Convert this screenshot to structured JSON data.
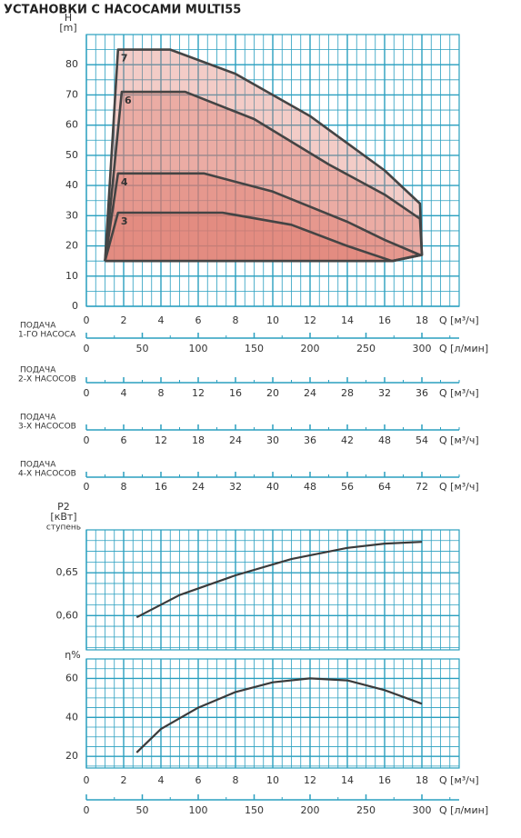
{
  "title": "УСТАНОВКИ С НАСОСАМИ MULTI55",
  "chart_data": [
    {
      "type": "line",
      "y_label": "H",
      "y_unit": "[m]",
      "x_label": "Q [м³/ч]",
      "xlim": [
        0,
        20
      ],
      "ylim": [
        0,
        90
      ],
      "xticks": [
        0,
        2,
        4,
        6,
        8,
        10,
        12,
        14,
        16,
        18
      ],
      "yticks": [
        0,
        10,
        20,
        30,
        40,
        50,
        60,
        70,
        80
      ],
      "grid": true,
      "xtick_labels": true,
      "series": [
        {
          "name": "7",
          "color": "#e07a6c",
          "x": [
            1.0,
            1.7,
            4.5,
            8,
            12,
            16,
            17.9,
            18.0,
            16.4,
            1.0
          ],
          "values": [
            15,
            85,
            85,
            77,
            63,
            45,
            34,
            17,
            15,
            15
          ]
        },
        {
          "name": "6",
          "color": "#e07a6c",
          "x": [
            1.0,
            1.9,
            5.3,
            9,
            13,
            16,
            17.9,
            18.0,
            16.4,
            1.0
          ],
          "values": [
            15,
            71,
            71,
            62,
            47,
            37,
            29,
            17,
            15,
            15
          ]
        },
        {
          "name": "4",
          "color": "#e07a6c",
          "x": [
            1.0,
            1.7,
            6.3,
            10,
            14,
            16,
            17.9,
            16.4,
            1.0
          ],
          "values": [
            15,
            44,
            44,
            38,
            28,
            22,
            17,
            15,
            15
          ]
        },
        {
          "name": "3",
          "color": "#e07a6c",
          "x": [
            1.0,
            1.7,
            7.3,
            11,
            14,
            16.4,
            1.0
          ],
          "values": [
            15,
            31,
            31,
            27,
            20,
            15,
            15
          ]
        }
      ]
    },
    {
      "type": "axis",
      "label": [
        "ПОДАЧА",
        "1-ГО НАСОСА"
      ],
      "x_label": "Q [л/мин]",
      "xlim": [
        0,
        333.33
      ],
      "xticks": [
        0,
        50,
        100,
        150,
        200,
        250,
        300
      ]
    },
    {
      "type": "axis",
      "label": [
        "ПОДАЧА",
        "2-Х НАСОСОВ"
      ],
      "x_label": "Q [м³/ч]",
      "xlim": [
        0,
        40
      ],
      "xticks": [
        0,
        4,
        8,
        12,
        16,
        20,
        24,
        28,
        32,
        36
      ]
    },
    {
      "type": "axis",
      "label": [
        "ПОДАЧА",
        "3-Х НАСОСОВ"
      ],
      "x_label": "Q [м³/ч]",
      "xlim": [
        0,
        60
      ],
      "xticks": [
        0,
        6,
        12,
        18,
        24,
        30,
        36,
        42,
        48,
        54
      ]
    },
    {
      "type": "axis",
      "label": [
        "ПОДАЧА",
        "4-Х НАСОСОВ"
      ],
      "x_label": "Q [м³/ч]",
      "xlim": [
        0,
        80
      ],
      "xticks": [
        0,
        8,
        16,
        24,
        32,
        40,
        48,
        56,
        64,
        72
      ]
    },
    {
      "type": "line",
      "y_label": "P2",
      "y_unit": "[кВт]",
      "y_note": "ступень",
      "xlim": [
        0,
        20
      ],
      "ylim": [
        0.56,
        0.7
      ],
      "xticks": [
        0,
        2,
        4,
        6,
        8,
        10,
        12,
        14,
        16,
        18
      ],
      "yticks": [
        {
          "value": 0.6,
          "label": "0,60"
        },
        {
          "value": 0.65,
          "label": "0,65"
        }
      ],
      "grid": true,
      "xtick_labels": false,
      "series": [
        {
          "color": "#3a3a3a",
          "x": [
            2.7,
            5,
            8,
            11,
            14,
            16,
            18
          ],
          "values": [
            0.598,
            0.624,
            0.647,
            0.666,
            0.679,
            0.684,
            0.686
          ]
        }
      ]
    },
    {
      "type": "line",
      "y_label": "η%",
      "x_label": "Q [м³/ч]",
      "xlim": [
        0,
        20
      ],
      "ylim": [
        14,
        70
      ],
      "xticks": [
        0,
        2,
        4,
        6,
        8,
        10,
        12,
        14,
        16,
        18
      ],
      "yticks": [
        20,
        40,
        60
      ],
      "grid": true,
      "xtick_labels": true,
      "series": [
        {
          "color": "#3a3a3a",
          "x": [
            2.7,
            4,
            6,
            8,
            10,
            12,
            14,
            16,
            18
          ],
          "values": [
            22,
            34,
            45,
            53,
            58,
            60,
            59,
            54,
            47
          ]
        }
      ]
    },
    {
      "type": "axis",
      "x_label": "Q [л/мин]",
      "xlim": [
        0,
        333.33
      ],
      "xticks": [
        0,
        50,
        100,
        150,
        200,
        250,
        300
      ]
    }
  ]
}
